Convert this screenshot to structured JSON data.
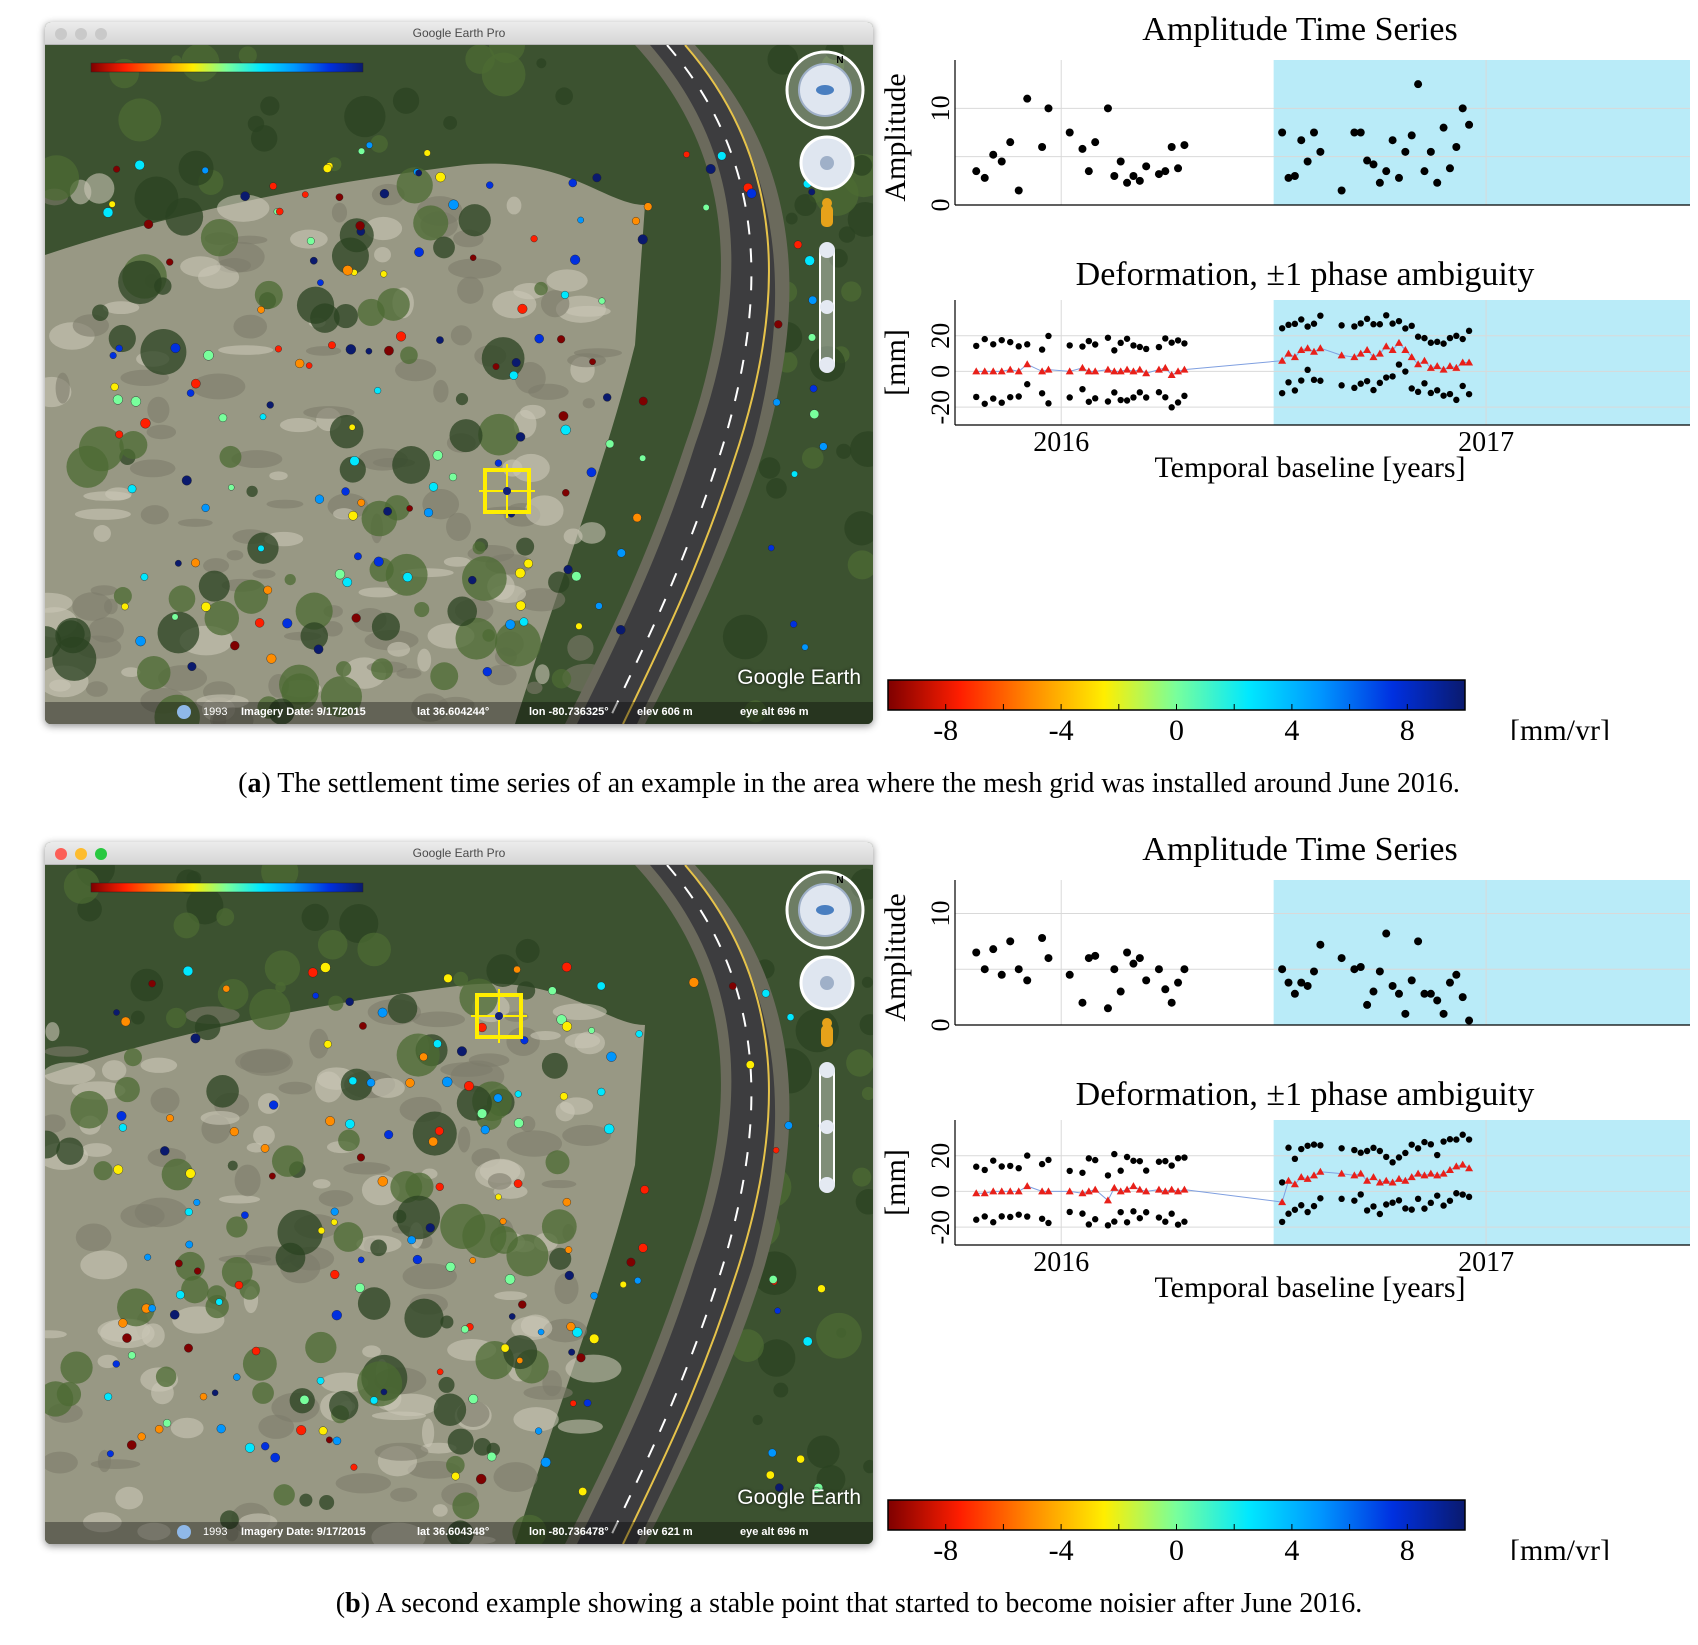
{
  "panels": [
    {
      "id": "a",
      "window_title": "Google Earth Pro",
      "logo_text": "Google Earth",
      "status": {
        "year": "1993",
        "imagery_date": "Imagery Date: 9/17/2015",
        "lat": "lat  36.604244°",
        "lon": "lon  -80.736325°",
        "elev": "elev  606 m",
        "eye_alt": "eye alt  696 m"
      },
      "caption_label": "a",
      "caption_text": " The settlement time series of an example in the area where the mesh grid was installed around June 2016.",
      "amplitude_chart": {
        "type": "scatter",
        "title": "Amplitude Time Series",
        "ylabel": "Amplitude",
        "xlim": [
          2015.75,
          2017.48
        ],
        "ylim": [
          0,
          15
        ],
        "yticks": [
          0,
          10
        ],
        "highlight_start": 2016.5,
        "points": [
          [
            2015.8,
            3.5
          ],
          [
            2015.82,
            2.8
          ],
          [
            2015.84,
            5.2
          ],
          [
            2015.86,
            4.5
          ],
          [
            2015.88,
            6.5
          ],
          [
            2015.9,
            1.5
          ],
          [
            2015.92,
            11
          ],
          [
            2015.955,
            6
          ],
          [
            2015.97,
            10
          ],
          [
            2016.02,
            7.5
          ],
          [
            2016.05,
            5.8
          ],
          [
            2016.065,
            3.5
          ],
          [
            2016.08,
            6.5
          ],
          [
            2016.11,
            10
          ],
          [
            2016.125,
            3
          ],
          [
            2016.14,
            4.5
          ],
          [
            2016.155,
            2.3
          ],
          [
            2016.17,
            3
          ],
          [
            2016.185,
            2.5
          ],
          [
            2016.2,
            4
          ],
          [
            2016.23,
            3.2
          ],
          [
            2016.245,
            3.5
          ],
          [
            2016.26,
            6
          ],
          [
            2016.275,
            3.8
          ],
          [
            2016.29,
            6.2
          ],
          [
            2016.52,
            7.5
          ],
          [
            2016.535,
            2.8
          ],
          [
            2016.55,
            3
          ],
          [
            2016.565,
            6.7
          ],
          [
            2016.58,
            4.5
          ],
          [
            2016.595,
            7.5
          ],
          [
            2016.61,
            5.5
          ],
          [
            2016.66,
            1.5
          ],
          [
            2016.69,
            7.5
          ],
          [
            2016.705,
            7.5
          ],
          [
            2016.72,
            4.6
          ],
          [
            2016.735,
            4.2
          ],
          [
            2016.75,
            2.3
          ],
          [
            2016.765,
            3.5
          ],
          [
            2016.78,
            6.7
          ],
          [
            2016.795,
            2.8
          ],
          [
            2016.81,
            5.5
          ],
          [
            2016.825,
            7.2
          ],
          [
            2016.84,
            12.5
          ],
          [
            2016.855,
            3.5
          ],
          [
            2016.87,
            5.5
          ],
          [
            2016.885,
            2.3
          ],
          [
            2016.9,
            8
          ],
          [
            2016.915,
            3.8
          ],
          [
            2016.93,
            6
          ],
          [
            2016.945,
            10
          ],
          [
            2016.96,
            8.3
          ]
        ]
      },
      "deformation_chart": {
        "type": "scatter",
        "title": "Deformation, ±1 phase ambiguity",
        "ylabel": "[mm]",
        "xlabel": "Temporal baseline [years]",
        "xlim": [
          2015.75,
          2017.48
        ],
        "ylim": [
          -30,
          40
        ],
        "yticks": [
          -20,
          0,
          20
        ],
        "xticks": [
          {
            "value": 2016,
            "label": "2016"
          },
          {
            "value": 2017,
            "label": "2017"
          }
        ],
        "highlight_start": 2016.5,
        "x": [
          2015.8,
          2015.82,
          2015.84,
          2015.86,
          2015.88,
          2015.9,
          2015.92,
          2015.955,
          2015.97,
          2016.02,
          2016.05,
          2016.065,
          2016.08,
          2016.11,
          2016.125,
          2016.14,
          2016.155,
          2016.17,
          2016.185,
          2016.2,
          2016.23,
          2016.245,
          2016.26,
          2016.275,
          2016.29,
          2016.52,
          2016.535,
          2016.55,
          2016.565,
          2016.58,
          2016.595,
          2016.61,
          2016.66,
          2016.69,
          2016.705,
          2016.72,
          2016.735,
          2016.75,
          2016.765,
          2016.78,
          2016.795,
          2016.81,
          2016.825,
          2016.84,
          2016.855,
          2016.87,
          2016.885,
          2016.9,
          2016.915,
          2016.93,
          2016.945,
          2016.96
        ],
        "central": [
          0,
          0,
          0,
          0,
          1,
          0,
          4,
          0,
          1,
          0,
          2,
          0,
          0,
          1,
          0,
          0,
          1,
          0,
          1,
          -1,
          1,
          2,
          -2,
          0,
          1,
          6,
          10,
          8,
          12,
          13,
          11,
          13,
          9,
          8,
          10,
          12,
          8,
          10,
          14,
          12,
          16,
          12,
          8,
          4,
          6,
          2,
          3,
          1,
          3,
          2,
          5,
          5
        ]
      },
      "colorbar": {
        "ticks": [
          "-8",
          "-4",
          "0",
          "4",
          "8"
        ],
        "unit": "[mm/yr]"
      }
    },
    {
      "id": "b",
      "window_title": "Google Earth Pro",
      "logo_text": "Google Earth",
      "status": {
        "year": "1993",
        "imagery_date": "Imagery Date: 9/17/2015",
        "lat": "lat  36.604348°",
        "lon": "lon  -80.736478°",
        "elev": "elev  621 m",
        "eye_alt": "eye alt  696 m"
      },
      "caption_label": "b",
      "caption_text": " A second example showing a stable point that started to become noisier after June 2016.",
      "amplitude_chart": {
        "type": "scatter",
        "title": "Amplitude Time Series",
        "ylabel": "Amplitude",
        "xlim": [
          2015.75,
          2017.48
        ],
        "ylim": [
          0,
          13
        ],
        "yticks": [
          0,
          10
        ],
        "highlight_start": 2016.5,
        "points": [
          [
            2015.8,
            6.5
          ],
          [
            2015.82,
            5
          ],
          [
            2015.84,
            6.8
          ],
          [
            2015.86,
            4.5
          ],
          [
            2015.88,
            7.5
          ],
          [
            2015.9,
            5
          ],
          [
            2015.92,
            4
          ],
          [
            2015.955,
            7.8
          ],
          [
            2015.97,
            6
          ],
          [
            2016.02,
            4.5
          ],
          [
            2016.05,
            2
          ],
          [
            2016.065,
            6
          ],
          [
            2016.08,
            6.2
          ],
          [
            2016.11,
            1.5
          ],
          [
            2016.125,
            5
          ],
          [
            2016.14,
            3
          ],
          [
            2016.155,
            6.5
          ],
          [
            2016.17,
            5.5
          ],
          [
            2016.185,
            6
          ],
          [
            2016.2,
            4
          ],
          [
            2016.23,
            5
          ],
          [
            2016.245,
            3.2
          ],
          [
            2016.26,
            2
          ],
          [
            2016.275,
            3.8
          ],
          [
            2016.29,
            5
          ],
          [
            2016.52,
            5
          ],
          [
            2016.535,
            3.8
          ],
          [
            2016.55,
            2.8
          ],
          [
            2016.565,
            3.8
          ],
          [
            2016.58,
            3.5
          ],
          [
            2016.595,
            4.8
          ],
          [
            2016.61,
            7.2
          ],
          [
            2016.66,
            6
          ],
          [
            2016.69,
            5
          ],
          [
            2016.705,
            5.2
          ],
          [
            2016.72,
            1.8
          ],
          [
            2016.735,
            3
          ],
          [
            2016.75,
            4.8
          ],
          [
            2016.765,
            8.2
          ],
          [
            2016.78,
            3.5
          ],
          [
            2016.795,
            2.8
          ],
          [
            2016.81,
            1
          ],
          [
            2016.825,
            4
          ],
          [
            2016.84,
            7.5
          ],
          [
            2016.855,
            2.8
          ],
          [
            2016.87,
            2.8
          ],
          [
            2016.885,
            2.2
          ],
          [
            2016.9,
            1
          ],
          [
            2016.915,
            3.8
          ],
          [
            2016.93,
            4.5
          ],
          [
            2016.945,
            2.5
          ],
          [
            2016.96,
            0.4
          ]
        ]
      },
      "deformation_chart": {
        "type": "scatter",
        "title": "Deformation, ±1 phase ambiguity",
        "ylabel": "[mm]",
        "xlabel": "Temporal baseline [years]",
        "xlim": [
          2015.75,
          2017.48
        ],
        "ylim": [
          -30,
          40
        ],
        "yticks": [
          -20,
          0,
          20
        ],
        "xticks": [
          {
            "value": 2016,
            "label": "2016"
          },
          {
            "value": 2017,
            "label": "2017"
          }
        ],
        "highlight_start": 2016.5,
        "x": [
          2015.8,
          2015.82,
          2015.84,
          2015.86,
          2015.88,
          2015.9,
          2015.92,
          2015.955,
          2015.97,
          2016.02,
          2016.05,
          2016.065,
          2016.08,
          2016.11,
          2016.125,
          2016.14,
          2016.155,
          2016.17,
          2016.185,
          2016.2,
          2016.23,
          2016.245,
          2016.26,
          2016.275,
          2016.29,
          2016.52,
          2016.535,
          2016.55,
          2016.565,
          2016.58,
          2016.595,
          2016.61,
          2016.66,
          2016.69,
          2016.705,
          2016.72,
          2016.735,
          2016.75,
          2016.765,
          2016.78,
          2016.795,
          2016.81,
          2016.825,
          2016.84,
          2016.855,
          2016.87,
          2016.885,
          2016.9,
          2016.915,
          2016.93,
          2016.945,
          2016.96
        ],
        "central": [
          -1,
          -1,
          0,
          0,
          0,
          0,
          3,
          0,
          0,
          0,
          -1,
          0,
          1,
          -5,
          2,
          0,
          1,
          3,
          1,
          0,
          1,
          0,
          1,
          0,
          1,
          -6,
          6,
          4,
          8,
          7,
          9,
          11,
          10,
          9,
          10,
          6,
          8,
          5,
          6,
          5,
          7,
          6,
          8,
          10,
          9,
          10,
          9,
          10,
          12,
          14,
          15,
          13
        ]
      },
      "colorbar": {
        "ticks": [
          "-8",
          "-4",
          "0",
          "4",
          "8"
        ],
        "unit": "[mm/yr]"
      }
    }
  ],
  "colors": {
    "highlight": "#b9ebf8",
    "red_marker": "#e8201a",
    "black_marker": "#000000",
    "selection_box": "#ffee00",
    "colorbar_gradient": [
      "#7f0000",
      "#ff1e00",
      "#ff8c00",
      "#ffee00",
      "#78ff9c",
      "#00e8ff",
      "#0096ff",
      "#0030e0",
      "#0a1a6e"
    ]
  }
}
